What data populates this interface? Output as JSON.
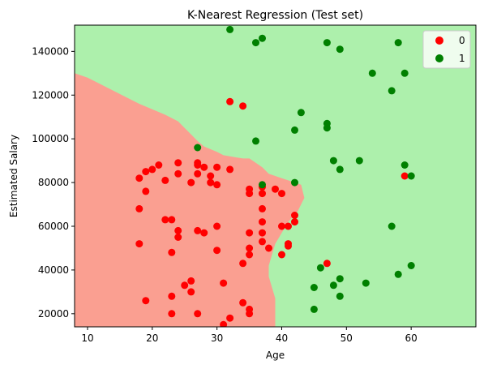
{
  "chart_data": {
    "type": "scatter",
    "title": "K-Nearest Regression (Test set)",
    "xlabel": "Age",
    "ylabel": "Estimated Salary",
    "xlim": [
      8,
      70
    ],
    "ylim": [
      14000,
      152000
    ],
    "xticks": [
      10,
      20,
      30,
      40,
      50,
      60
    ],
    "yticks": [
      20000,
      40000,
      60000,
      80000,
      100000,
      120000,
      140000
    ],
    "grid": false,
    "legend_position": "top-right",
    "colors": {
      "region_0": "#fa9f91",
      "region_1": "#adf0ac",
      "point_0": "#ff0000",
      "point_1": "#008000"
    },
    "decision_boundary": [
      [
        8,
        130000
      ],
      [
        10,
        128000
      ],
      [
        12,
        125000
      ],
      [
        14,
        122000
      ],
      [
        16,
        119000
      ],
      [
        18,
        116000
      ],
      [
        20,
        113500
      ],
      [
        22,
        111000
      ],
      [
        24,
        108000
      ],
      [
        25,
        105000
      ],
      [
        26,
        102000
      ],
      [
        27,
        99000
      ],
      [
        28,
        96500
      ],
      [
        30,
        94000
      ],
      [
        31,
        92500
      ],
      [
        33,
        91500
      ],
      [
        34,
        91000
      ],
      [
        35,
        91000
      ],
      [
        36,
        89000
      ],
      [
        37,
        87000
      ],
      [
        38,
        84000
      ],
      [
        40,
        82000
      ],
      [
        41,
        81000
      ],
      [
        42,
        80000
      ],
      [
        43,
        79000
      ],
      [
        43.5,
        73000
      ],
      [
        42.5,
        67000
      ],
      [
        41,
        62000
      ],
      [
        40,
        57000
      ],
      [
        39,
        52000
      ],
      [
        38.5,
        47000
      ],
      [
        38,
        42000
      ],
      [
        38,
        37000
      ],
      [
        38.5,
        32000
      ],
      [
        39,
        27000
      ],
      [
        39,
        20000
      ],
      [
        39,
        14000
      ]
    ],
    "series": [
      {
        "name": "0",
        "points": [
          [
            18,
            82000
          ],
          [
            19,
            85000
          ],
          [
            20,
            86000
          ],
          [
            21,
            88000
          ],
          [
            24,
            89000
          ],
          [
            24,
            84000
          ],
          [
            22,
            81000
          ],
          [
            19,
            76000
          ],
          [
            18,
            68000
          ],
          [
            22,
            63000
          ],
          [
            23,
            63000
          ],
          [
            24,
            58000
          ],
          [
            24,
            55000
          ],
          [
            18,
            52000
          ],
          [
            23,
            48000
          ],
          [
            26,
            35000
          ],
          [
            25,
            33000
          ],
          [
            26,
            30000
          ],
          [
            23,
            28000
          ],
          [
            19,
            26000
          ],
          [
            23,
            20000
          ],
          [
            27,
            20000
          ],
          [
            31,
            15000
          ],
          [
            32,
            18000
          ],
          [
            35,
            20000
          ],
          [
            35,
            22000
          ],
          [
            34,
            25000
          ],
          [
            31,
            34000
          ],
          [
            34,
            43000
          ],
          [
            30,
            49000
          ],
          [
            27,
            58000
          ],
          [
            28,
            57000
          ],
          [
            30,
            60000
          ],
          [
            26,
            80000
          ],
          [
            27,
            84000
          ],
          [
            27,
            88000
          ],
          [
            27,
            89000
          ],
          [
            28,
            87000
          ],
          [
            29,
            83000
          ],
          [
            29,
            80000
          ],
          [
            30,
            79000
          ],
          [
            30,
            87000
          ],
          [
            32,
            86000
          ],
          [
            35,
            77000
          ],
          [
            35,
            75000
          ],
          [
            37,
            78000
          ],
          [
            37,
            75000
          ],
          [
            39,
            77000
          ],
          [
            40,
            75000
          ],
          [
            40,
            60000
          ],
          [
            41,
            60000
          ],
          [
            42,
            62000
          ],
          [
            42,
            65000
          ],
          [
            37,
            68000
          ],
          [
            37,
            62000
          ],
          [
            37,
            57000
          ],
          [
            35,
            57000
          ],
          [
            37,
            53000
          ],
          [
            38,
            50000
          ],
          [
            35,
            50000
          ],
          [
            35,
            47000
          ],
          [
            41,
            51000
          ],
          [
            41,
            52000
          ],
          [
            40,
            47000
          ],
          [
            32,
            117000
          ],
          [
            34,
            115000
          ],
          [
            47,
            43000
          ],
          [
            59,
            83000
          ]
        ]
      },
      {
        "name": "1",
        "points": [
          [
            32,
            150000
          ],
          [
            36,
            144000
          ],
          [
            37,
            146000
          ],
          [
            47,
            144000
          ],
          [
            49,
            141000
          ],
          [
            58,
            144000
          ],
          [
            54,
            130000
          ],
          [
            59,
            130000
          ],
          [
            57,
            122000
          ],
          [
            43,
            112000
          ],
          [
            47,
            107000
          ],
          [
            47,
            105000
          ],
          [
            42,
            104000
          ],
          [
            36,
            99000
          ],
          [
            27,
            96000
          ],
          [
            48,
            90000
          ],
          [
            52,
            90000
          ],
          [
            49,
            86000
          ],
          [
            59,
            88000
          ],
          [
            60,
            83000
          ],
          [
            37,
            79000
          ],
          [
            42,
            80000
          ],
          [
            57,
            60000
          ],
          [
            60,
            42000
          ],
          [
            46,
            41000
          ],
          [
            58,
            38000
          ],
          [
            49,
            36000
          ],
          [
            53,
            34000
          ],
          [
            48,
            33000
          ],
          [
            45,
            32000
          ],
          [
            49,
            28000
          ],
          [
            45,
            22000
          ]
        ]
      }
    ]
  }
}
